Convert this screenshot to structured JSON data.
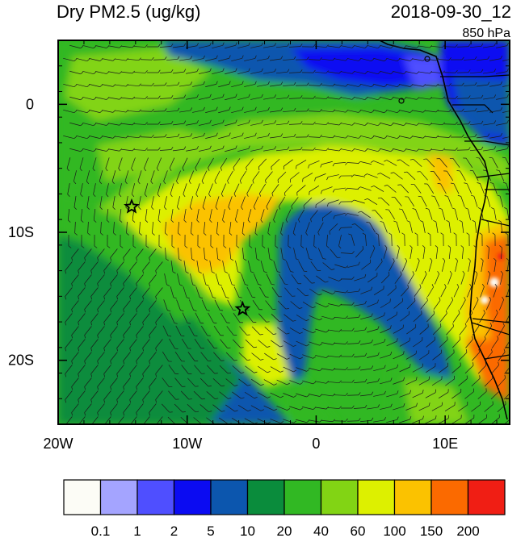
{
  "header": {
    "title": "Dry PM2.5 (ug/kg)",
    "datetime": "2018-09-30_12",
    "level": "850 hPa"
  },
  "map": {
    "lon_range": [
      -20,
      15
    ],
    "lat_range": [
      -25,
      5
    ],
    "x_ticks": [
      {
        "value": -20,
        "label": "20W"
      },
      {
        "value": -10,
        "label": "10W"
      },
      {
        "value": 0,
        "label": "0"
      },
      {
        "value": 10,
        "label": "10E"
      }
    ],
    "y_ticks": [
      {
        "value": 0,
        "label": "0"
      },
      {
        "value": -10,
        "label": "10S"
      },
      {
        "value": -20,
        "label": "20S"
      }
    ],
    "markers": [
      {
        "name": "star-marker",
        "lon": -14.3,
        "lat": -8.0
      },
      {
        "name": "star-marker",
        "lon": -5.7,
        "lat": -16.0
      }
    ]
  },
  "colorbar": {
    "labels": [
      "0.1",
      "1",
      "2",
      "5",
      "10",
      "20",
      "40",
      "60",
      "100",
      "150",
      "200"
    ],
    "colors": [
      "#fcfcf6",
      "#a4a4ff",
      "#4f4fff",
      "#0b0bf2",
      "#0c56ae",
      "#0a8c3c",
      "#31b823",
      "#82d414",
      "#ddf000",
      "#fbc200",
      "#fb6a00",
      "#f01e14"
    ]
  }
}
